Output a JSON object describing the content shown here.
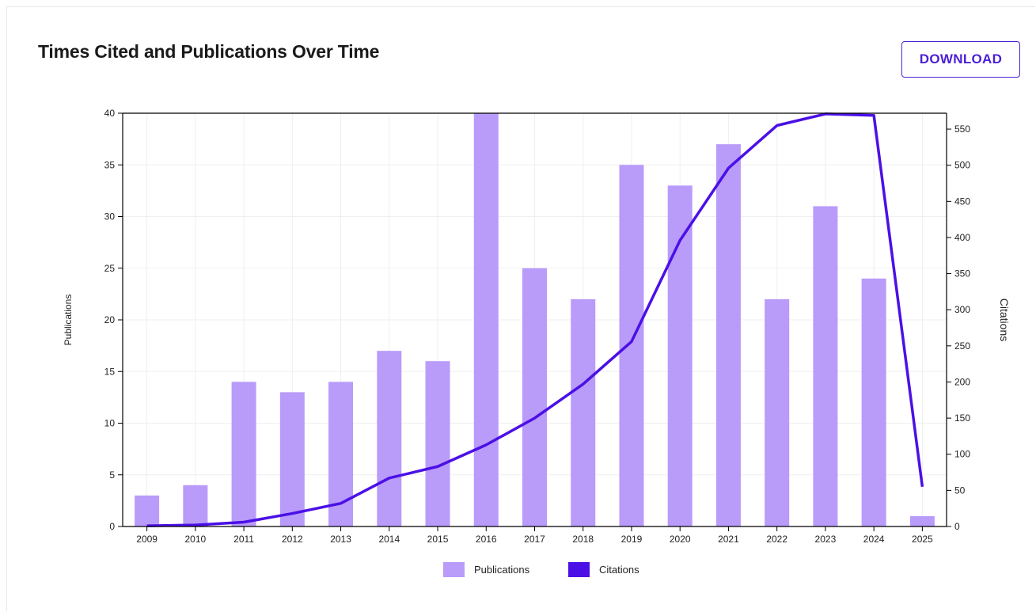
{
  "header": {
    "title": "Times Cited and Publications Over Time",
    "download_label": "DOWNLOAD"
  },
  "colors": {
    "bar": "#b99bfa",
    "line": "#4b10e6",
    "grid": "#efefef",
    "axis": "#000000",
    "accent": "#4b1fd6"
  },
  "chart_data": {
    "type": "bar",
    "x": [
      "2009",
      "2010",
      "2011",
      "2012",
      "2013",
      "2014",
      "2015",
      "2016",
      "2017",
      "2018",
      "2019",
      "2020",
      "2021",
      "2022",
      "2023",
      "2024",
      "2025"
    ],
    "series": [
      {
        "name": "Publications",
        "type": "bar",
        "axis": "left",
        "values": [
          3,
          4,
          14,
          13,
          14,
          17,
          16,
          40,
          25,
          22,
          35,
          33,
          37,
          22,
          31,
          24,
          1
        ]
      },
      {
        "name": "Citations",
        "type": "line",
        "axis": "right",
        "values": [
          1,
          2,
          6,
          18,
          32,
          67,
          83,
          113,
          150,
          197,
          256,
          396,
          496,
          555,
          571,
          569,
          55
        ]
      }
    ],
    "ylabel": "Publications",
    "y2label": "Citations",
    "ylim": [
      0,
      40
    ],
    "y2lim": [
      0,
      572
    ],
    "yticks": [
      0,
      5,
      10,
      15,
      20,
      25,
      30,
      35,
      40
    ],
    "y2ticks": [
      0,
      50,
      100,
      150,
      200,
      250,
      300,
      350,
      400,
      450,
      500,
      550
    ],
    "grid": true,
    "legend": "bottom-center"
  }
}
